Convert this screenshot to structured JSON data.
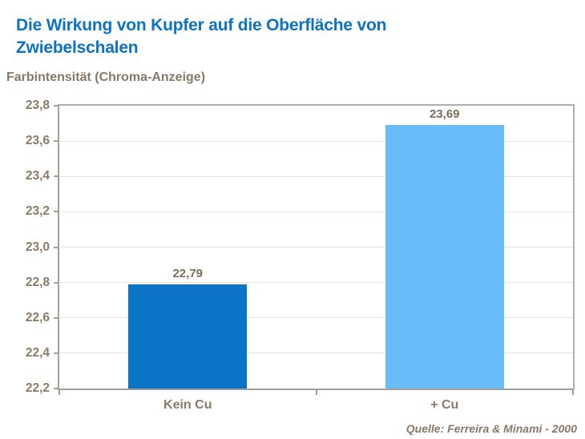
{
  "colors": {
    "title_blue": "#0c72c6",
    "bar_kein_cu": "#0b74c6",
    "bar_plus_cu": "#68bcfa",
    "brown_text": "#8a7b66",
    "value_text": "#7b6c59",
    "gridline": "#e4e4e4",
    "plot_border": "#adadad",
    "axis_line": "#a3a09a"
  },
  "chart_data": {
    "type": "bar",
    "title": "Die Wirkung von Kupfer auf die Oberfläche von Zwiebelschalen",
    "ylabel": "Farbintensität (Chroma-Anzeige)",
    "xlabel": "",
    "categories": [
      "Kein Cu",
      "+ Cu"
    ],
    "values": [
      22.79,
      23.69
    ],
    "value_labels": [
      "22,79",
      "23,69"
    ],
    "bar_colors": [
      "#0b74c6",
      "#68bcfa"
    ],
    "ylim": [
      22.2,
      23.8
    ],
    "ytick_labels": [
      "22,2",
      "22,4",
      "22,6",
      "22,8",
      "23,0",
      "23,2",
      "23,4",
      "23,6",
      "23,8"
    ],
    "ytick_step": 0.2,
    "grid": true,
    "legend": false,
    "source": "Quelle: Ferreira & Minami - 2000"
  }
}
